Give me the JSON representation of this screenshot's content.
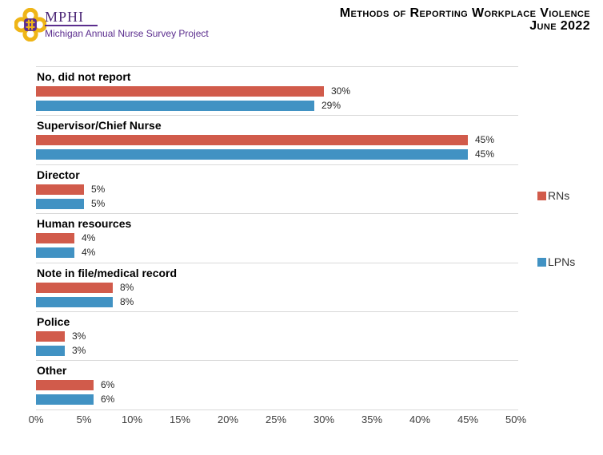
{
  "header": {
    "logo_acronym": "MPHI",
    "logo_subtitle": "Michigan Annual Nurse Survey Project",
    "title_line1": "Methods of Reporting Workplace Violence",
    "title_line2": "June 2022"
  },
  "colors": {
    "rns_bar": "#d15b4b",
    "lpns_bar": "#4192c3",
    "brand_purple": "#5b2d8e",
    "brand_gold": "#efb517",
    "separator_line": "#d9d9d9"
  },
  "chart_data": {
    "type": "bar",
    "orientation": "horizontal",
    "title": "Methods of Reporting Workplace Violence",
    "subtitle": "June 2022",
    "categories": [
      "No, did not report",
      "Supervisor/Chief Nurse",
      "Director",
      "Human resources",
      "Note in file/medical record",
      "Police",
      "Other"
    ],
    "series": [
      {
        "name": "RNs",
        "color": "#d15b4b",
        "values": [
          30,
          45,
          5,
          4,
          8,
          3,
          6
        ]
      },
      {
        "name": "LPNs",
        "color": "#4192c3",
        "values": [
          29,
          45,
          5,
          4,
          8,
          3,
          6
        ]
      }
    ],
    "value_suffix": "%",
    "xlabel": "",
    "ylabel": "",
    "xlim": [
      0,
      50
    ],
    "x_ticks": [
      "0%",
      "5%",
      "10%",
      "15%",
      "20%",
      "25%",
      "30%",
      "35%",
      "40%",
      "45%",
      "50%"
    ],
    "grid": "category-separators-only",
    "legend_position": "right"
  }
}
